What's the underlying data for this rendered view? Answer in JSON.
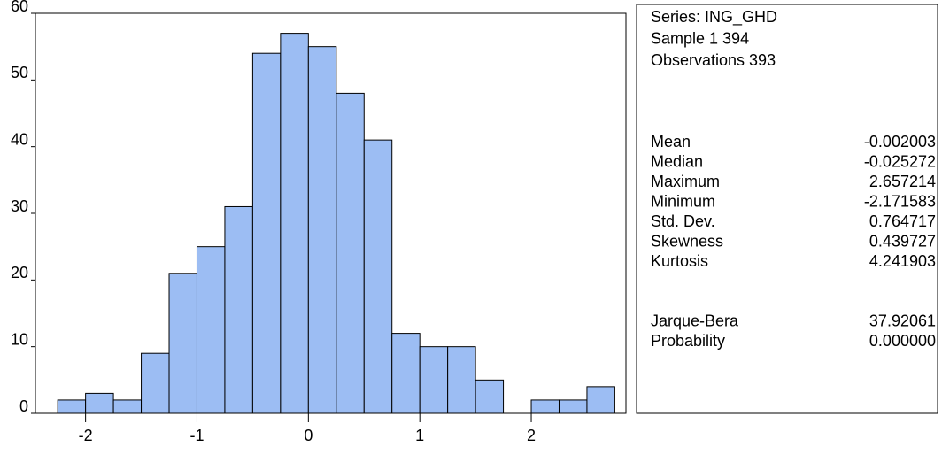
{
  "chart_data": {
    "type": "histogram",
    "bins": [
      -2.25,
      -2.0,
      -1.75,
      -1.5,
      -1.25,
      -1.0,
      -0.75,
      -0.5,
      -0.25,
      0,
      0.25,
      0.5,
      0.75,
      1.0,
      1.25,
      1.5,
      1.75,
      2.0,
      2.25,
      2.5,
      2.75
    ],
    "values": [
      2,
      3,
      2,
      9,
      21,
      25,
      31,
      54,
      57,
      55,
      48,
      41,
      12,
      10,
      10,
      5,
      0,
      2,
      2,
      4
    ],
    "color": "#9cbdf3",
    "xlim": [
      -2.45,
      2.85
    ],
    "xticks": [
      -2,
      -1,
      0,
      1,
      2
    ],
    "ylim": [
      0,
      60
    ],
    "yticks": [
      0,
      10,
      20,
      30,
      40,
      50,
      60
    ]
  },
  "stats": {
    "header": [
      "Series: ING_GHD",
      "Sample 1 394",
      "Observations 393"
    ],
    "rows": [
      [
        "Mean",
        "-0.002003"
      ],
      [
        "Median",
        "-0.025272"
      ],
      [
        "Maximum",
        "2.657214"
      ],
      [
        "Minimum",
        "-2.171583"
      ],
      [
        "Std. Dev.",
        "0.764717"
      ],
      [
        "Skewness",
        "0.439727"
      ],
      [
        "Kurtosis",
        "4.241903"
      ],
      [
        "Jarque-Bera",
        "37.92061"
      ],
      [
        "Probability",
        "0.000000"
      ]
    ]
  }
}
